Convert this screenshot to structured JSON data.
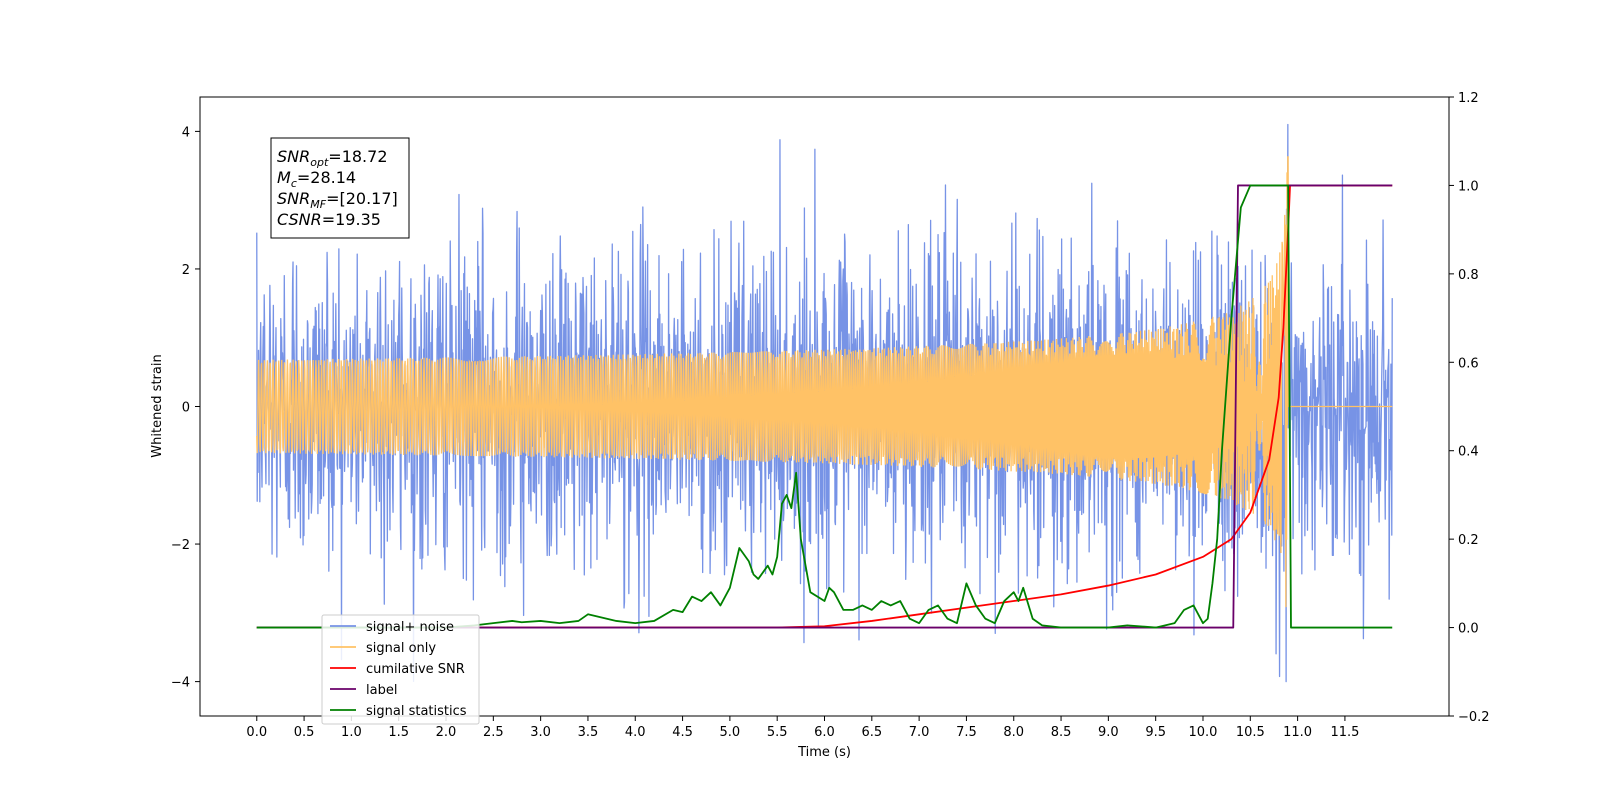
{
  "chart_data": {
    "type": "line",
    "xlabel": "Time (s)",
    "ylabel": "Whitened strain",
    "xlim": [
      -0.6,
      12.6
    ],
    "ylim": [
      -4.5,
      4.5
    ],
    "y2lim": [
      -0.2,
      1.2
    ],
    "x_ticks": [
      "0.0",
      "0.5",
      "1.0",
      "1.5",
      "2.0",
      "2.5",
      "3.0",
      "3.5",
      "4.0",
      "4.5",
      "5.0",
      "5.5",
      "6.0",
      "6.5",
      "7.0",
      "7.5",
      "8.0",
      "8.5",
      "9.0",
      "9.5",
      "10.0",
      "10.5",
      "11.0",
      "11.5"
    ],
    "y_ticks": [
      "4",
      "2",
      "0",
      "−2",
      "−4"
    ],
    "y2_ticks": [
      "1.2",
      "1.0",
      "0.8",
      "0.6",
      "0.4",
      "0.2",
      "0.0",
      "−0.2"
    ],
    "grid": false,
    "legend_position": "lower-left",
    "annotation": {
      "lines": [
        {
          "main": "SNR",
          "sub": "opt",
          "rest": "=18.72"
        },
        {
          "main": "M",
          "sub": "c",
          "rest": "=28.14"
        },
        {
          "main": "SNR",
          "sub": "MF",
          "rest": "=[20.17]"
        },
        {
          "main": "CSNR",
          "sub": "",
          "rest": "=19.35"
        }
      ]
    },
    "series": [
      {
        "name": "signal+ noise",
        "axis": "left",
        "color": "#7793e6",
        "noise_sigma": 1.0,
        "x_range": [
          0.0,
          12.0
        ]
      },
      {
        "name": "signal only",
        "axis": "left",
        "color": "#ffc266",
        "chirp_end": 10.9,
        "peak_amplitude": 3.9
      },
      {
        "name": "cumilative SNR",
        "axis": "right",
        "color": "#ff0000",
        "x": [
          0.0,
          5.5,
          6.0,
          6.5,
          7.0,
          7.5,
          8.0,
          8.5,
          9.0,
          9.5,
          10.0,
          10.3,
          10.5,
          10.7,
          10.8,
          10.85,
          10.9,
          10.92,
          12.0
        ],
        "values": [
          0.0,
          0.0,
          0.003,
          0.015,
          0.03,
          0.045,
          0.06,
          0.075,
          0.095,
          0.12,
          0.16,
          0.2,
          0.26,
          0.38,
          0.52,
          0.68,
          0.9,
          1.0,
          1.0
        ]
      },
      {
        "name": "label",
        "axis": "right",
        "color": "#6a006a",
        "x": [
          0.0,
          10.32,
          10.37,
          12.0
        ],
        "values": [
          0.0,
          0.0,
          1.0,
          1.0
        ]
      },
      {
        "name": "signal statistics",
        "axis": "right",
        "color": "#008000",
        "x": [
          0.0,
          0.5,
          1.0,
          1.5,
          2.0,
          2.3,
          2.5,
          2.7,
          2.8,
          3.0,
          3.2,
          3.4,
          3.5,
          3.6,
          3.8,
          4.0,
          4.2,
          4.4,
          4.5,
          4.6,
          4.7,
          4.8,
          4.9,
          5.0,
          5.1,
          5.2,
          5.25,
          5.3,
          5.4,
          5.45,
          5.5,
          5.55,
          5.6,
          5.65,
          5.7,
          5.75,
          5.85,
          6.0,
          6.05,
          6.1,
          6.2,
          6.3,
          6.4,
          6.5,
          6.6,
          6.7,
          6.8,
          6.9,
          7.0,
          7.1,
          7.2,
          7.3,
          7.4,
          7.5,
          7.6,
          7.7,
          7.8,
          7.9,
          8.0,
          8.05,
          8.1,
          8.2,
          8.3,
          8.5,
          9.0,
          9.2,
          9.5,
          9.7,
          9.8,
          9.9,
          10.0,
          10.05,
          10.1,
          10.15,
          10.2,
          10.3,
          10.4,
          10.5,
          10.6,
          10.9,
          10.93,
          11.0,
          12.0
        ],
        "values": [
          0.0,
          0.0,
          0.0,
          0.0,
          0.0,
          0.005,
          0.01,
          0.015,
          0.012,
          0.015,
          0.01,
          0.015,
          0.03,
          0.025,
          0.015,
          0.01,
          0.015,
          0.04,
          0.035,
          0.07,
          0.06,
          0.08,
          0.05,
          0.09,
          0.18,
          0.15,
          0.12,
          0.11,
          0.14,
          0.12,
          0.16,
          0.28,
          0.3,
          0.27,
          0.35,
          0.2,
          0.08,
          0.06,
          0.09,
          0.08,
          0.04,
          0.04,
          0.05,
          0.04,
          0.06,
          0.05,
          0.06,
          0.02,
          0.01,
          0.04,
          0.05,
          0.02,
          0.01,
          0.1,
          0.05,
          0.02,
          0.01,
          0.06,
          0.08,
          0.06,
          0.09,
          0.02,
          0.005,
          0.0,
          0.0,
          0.005,
          0.0,
          0.01,
          0.04,
          0.05,
          0.01,
          0.02,
          0.1,
          0.2,
          0.4,
          0.7,
          0.95,
          1.0,
          1.0,
          1.0,
          0.0,
          0.0,
          0.0
        ]
      }
    ]
  }
}
